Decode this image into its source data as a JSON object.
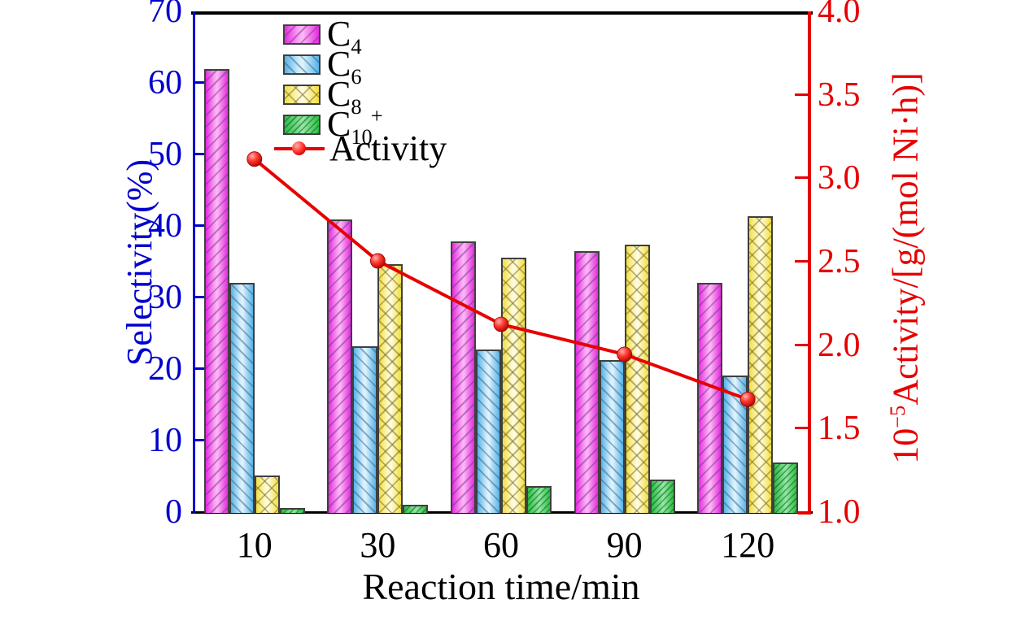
{
  "chart_data": {
    "type": "bar+line",
    "categories": [
      "10",
      "30",
      "60",
      "90",
      "120"
    ],
    "bar_series": [
      {
        "name": "C4",
        "label_base": "C",
        "label_sub": "4",
        "label_sup": "",
        "values": [
          62.1,
          41.0,
          38.0,
          36.6,
          32.2
        ],
        "edge_color": "#E62ADF",
        "mid_color": "#FFB9F5",
        "hatch": "/"
      },
      {
        "name": "C6",
        "label_base": "C",
        "label_sub": "6",
        "label_sup": "",
        "values": [
          32.2,
          23.3,
          22.8,
          21.4,
          19.2
        ],
        "edge_color": "#58B2E6",
        "mid_color": "#E2F3FC",
        "hatch": "\\"
      },
      {
        "name": "C8",
        "label_base": "C",
        "label_sub": "8",
        "label_sup": "",
        "values": [
          5.2,
          34.8,
          35.7,
          37.5,
          41.5
        ],
        "edge_color": "#F2DF3E",
        "mid_color": "#FFFDE6",
        "hatch": "x"
      },
      {
        "name": "C10+",
        "label_base": "C",
        "label_sub": "10",
        "label_sup": "+",
        "values": [
          0.7,
          1.1,
          3.7,
          4.7,
          7.1
        ],
        "edge_color": "#2EBE45",
        "mid_color": "#9AE8A8",
        "hatch": "fine/"
      }
    ],
    "line_series": {
      "name": "Activity",
      "values": [
        3.12,
        2.51,
        2.13,
        1.95,
        1.68
      ],
      "color": "#E60000",
      "marker": "filled-circle"
    },
    "left_axis": {
      "title": "Selectivity(%)",
      "min": 0,
      "max": 70,
      "tick_labels": [
        "0",
        "10",
        "20",
        "30",
        "40",
        "50",
        "60",
        "70"
      ],
      "color": "#0000CD"
    },
    "right_axis": {
      "title_prefix": "10",
      "title_sup": "−5",
      "title_rest": "Activity/[g/(mol Ni·h)]",
      "min": 1.0,
      "max": 4.0,
      "tick_labels": [
        "1.0",
        "1.5",
        "2.0",
        "2.5",
        "3.0",
        "3.5",
        "4.0"
      ],
      "color": "#E60000"
    },
    "x_axis": {
      "title": "Reaction time/min",
      "tick_labels": [
        "10",
        "30",
        "60",
        "90",
        "120"
      ],
      "color": "#000000"
    },
    "grid": "off",
    "legend_position": "upper-left-inside"
  },
  "legend": {
    "entries": [
      {
        "series": "c4",
        "base": "C",
        "sub": "4",
        "sup": ""
      },
      {
        "series": "c6",
        "base": "C",
        "sub": "6",
        "sup": ""
      },
      {
        "series": "c8",
        "base": "C",
        "sub": "8",
        "sup": ""
      },
      {
        "series": "c10",
        "base": "C",
        "sub": "10",
        "sup": "+"
      },
      {
        "series": "activity",
        "label": "Activity",
        "type": "line"
      }
    ]
  },
  "colors": {
    "left_axis_blue": "#0000CD",
    "right_axis_red": "#E60000",
    "line_red": "#E80000",
    "spine_black": "#000000",
    "bar_border": "#3F3F3F",
    "c4_magenta": "#E62ADF",
    "c6_blue": "#58B2E6",
    "c8_yellow": "#F2DF3E",
    "c10_green": "#2EBE45"
  }
}
